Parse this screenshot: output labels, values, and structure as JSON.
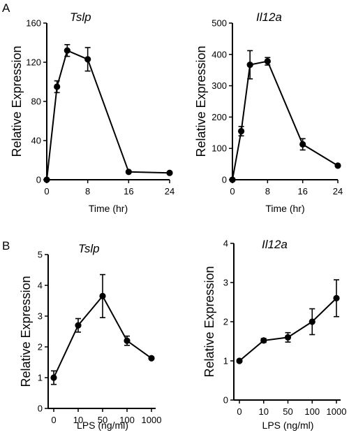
{
  "panel_labels": [
    "A",
    "B"
  ],
  "chart_data": [
    {
      "type": "line",
      "panel": "A",
      "title": "Tslp",
      "xlabel": "Time (hr)",
      "ylabel": "Relative Expression",
      "x_tick_labels": [
        "0",
        "8",
        "16",
        "24"
      ],
      "x_tick_values": [
        0,
        8,
        16,
        24
      ],
      "y_tick_labels": [
        "0",
        "40",
        "80",
        "120",
        "160"
      ],
      "y_tick_values": [
        0,
        40,
        80,
        120,
        160
      ],
      "xlim": [
        0,
        24
      ],
      "ylim": [
        0,
        160
      ],
      "x_scale": "linear",
      "grid": false,
      "series": [
        {
          "x": [
            0,
            2,
            4,
            8,
            16,
            24
          ],
          "values": [
            0,
            95,
            132,
            123,
            8,
            7
          ],
          "error": [
            0,
            6,
            6,
            12,
            0.5,
            0.5
          ]
        }
      ]
    },
    {
      "type": "line",
      "panel": "A",
      "title": "Il12a",
      "xlabel": "Time (hr)",
      "ylabel": "Relative Expression",
      "x_tick_labels": [
        "0",
        "8",
        "16",
        "24"
      ],
      "x_tick_values": [
        0,
        8,
        16,
        24
      ],
      "y_tick_labels": [
        "0",
        "100",
        "200",
        "300",
        "400",
        "500"
      ],
      "y_tick_values": [
        0,
        100,
        200,
        300,
        400,
        500
      ],
      "xlim": [
        0,
        24
      ],
      "ylim": [
        0,
        500
      ],
      "x_scale": "linear",
      "grid": false,
      "series": [
        {
          "x": [
            0,
            2,
            4,
            8,
            16,
            24
          ],
          "values": [
            0,
            155,
            367,
            378,
            113,
            45
          ],
          "error": [
            0,
            15,
            45,
            12,
            18,
            3
          ]
        }
      ]
    },
    {
      "type": "line",
      "panel": "B",
      "title": "Tslp",
      "xlabel": "LPS  (ng/ml)",
      "ylabel": "Relative Expression",
      "x_tick_labels": [
        "0",
        "10",
        "50",
        "100",
        "1000"
      ],
      "x_tick_values": [
        0,
        10,
        50,
        100,
        1000
      ],
      "y_tick_labels": [
        "0",
        "1",
        "2",
        "3",
        "4",
        "5"
      ],
      "y_tick_values": [
        0,
        1,
        2,
        3,
        4,
        5
      ],
      "ylim": [
        0,
        5
      ],
      "x_scale": "categorical",
      "grid": false,
      "series": [
        {
          "x": [
            0,
            10,
            50,
            100,
            1000
          ],
          "values": [
            1.0,
            2.7,
            3.65,
            2.2,
            1.63
          ],
          "error": [
            0.22,
            0.22,
            0.7,
            0.15,
            0.04
          ]
        }
      ]
    },
    {
      "type": "line",
      "panel": "B",
      "title": "Il12a",
      "xlabel": "LPS  (ng/ml)",
      "ylabel": "Relative Expression",
      "x_tick_labels": [
        "0",
        "10",
        "50",
        "100",
        "1000"
      ],
      "x_tick_values": [
        0,
        10,
        50,
        100,
        1000
      ],
      "y_tick_labels": [
        "0",
        "1",
        "2",
        "3",
        "4"
      ],
      "y_tick_values": [
        0,
        1,
        2,
        3,
        4
      ],
      "ylim": [
        0,
        4
      ],
      "x_scale": "categorical",
      "grid": false,
      "series": [
        {
          "x": [
            0,
            10,
            50,
            100,
            1000
          ],
          "values": [
            1.0,
            1.52,
            1.6,
            2.0,
            2.6
          ],
          "error": [
            0.03,
            0.05,
            0.12,
            0.33,
            0.47
          ]
        }
      ]
    }
  ]
}
